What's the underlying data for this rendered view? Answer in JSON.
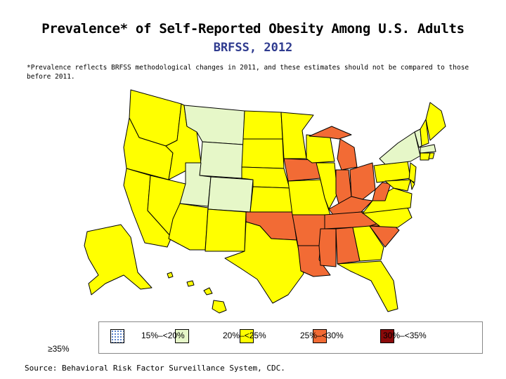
{
  "title": "Prevalence* of Self-Reported Obesity Among U.S. Adults",
  "subtitle": "BRFSS, 2012",
  "note": "*Prevalence reflects BRFSS methodological changes in 2011, and these estimates should not be compared to those before 2011.",
  "legend": {
    "items": [
      {
        "label": "",
        "color": "#ffffff",
        "pattern": "dotted-blue"
      },
      {
        "label": "15%–<20%",
        "color": "#e6f7c8"
      },
      {
        "label": "20%–<25%",
        "color": "#ffff00"
      },
      {
        "label": "25%–<30%",
        "color": "#f26b35"
      },
      {
        "label": "30%–<35%",
        "color": "#8b0a0a"
      }
    ],
    "last_label": "≥35%"
  },
  "source": "Source: Behavioral Risk Factor Surveillance System, CDC.",
  "categories": {
    "low": "#e6f7c8",
    "mid": "#ffff00",
    "high": "#f26b35"
  }
}
